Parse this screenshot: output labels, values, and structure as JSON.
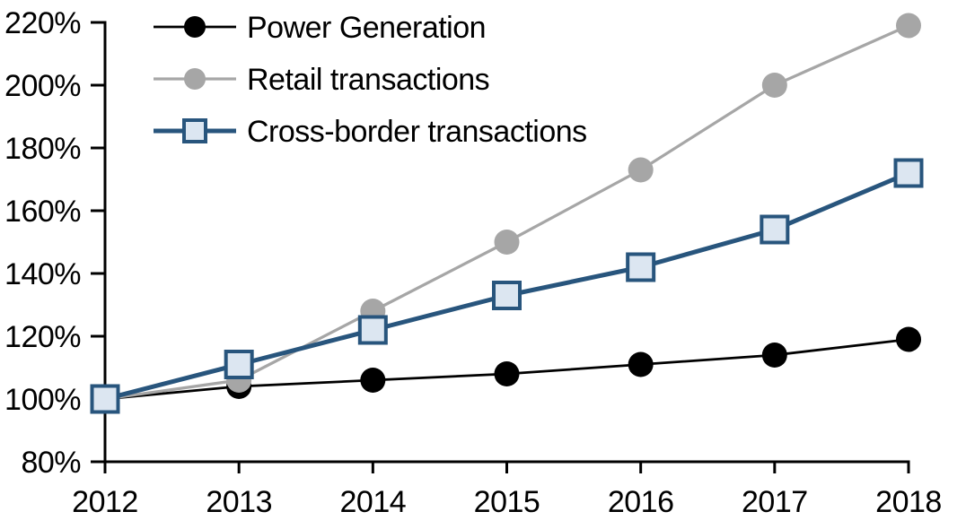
{
  "chart_data": {
    "type": "line",
    "categories": [
      "2012",
      "2013",
      "2014",
      "2015",
      "2016",
      "2017",
      "2018"
    ],
    "series": [
      {
        "name": "Power Generation",
        "values": [
          100,
          104,
          106,
          108,
          111,
          114,
          119
        ],
        "color": "#000000",
        "marker": "circle",
        "marker_fill": "#000000",
        "line_width": 2.75
      },
      {
        "name": "Retail transactions",
        "values": [
          100,
          106,
          128,
          150,
          173,
          200,
          219
        ],
        "color": "#a6a6a6",
        "marker": "circle",
        "marker_fill": "#a6a6a6",
        "line_width": 3.25
      },
      {
        "name": "Cross-border transactions",
        "values": [
          100,
          111,
          122,
          133,
          142,
          154,
          172
        ],
        "color": "#28557d",
        "marker": "square",
        "marker_fill": "#dce6f1",
        "line_width": 5
      }
    ],
    "xlabel": "",
    "ylabel": "",
    "ylim": [
      80,
      220
    ],
    "y_tick_step": 20,
    "y_tick_suffix": "%",
    "y_tick_labels": [
      "80%",
      "100%",
      "120%",
      "140%",
      "160%",
      "180%",
      "200%",
      "220%"
    ],
    "grid": false,
    "legend_position": "top-left-inside",
    "axis_color": "#000000",
    "background": "#ffffff",
    "font_size_px": 34
  }
}
